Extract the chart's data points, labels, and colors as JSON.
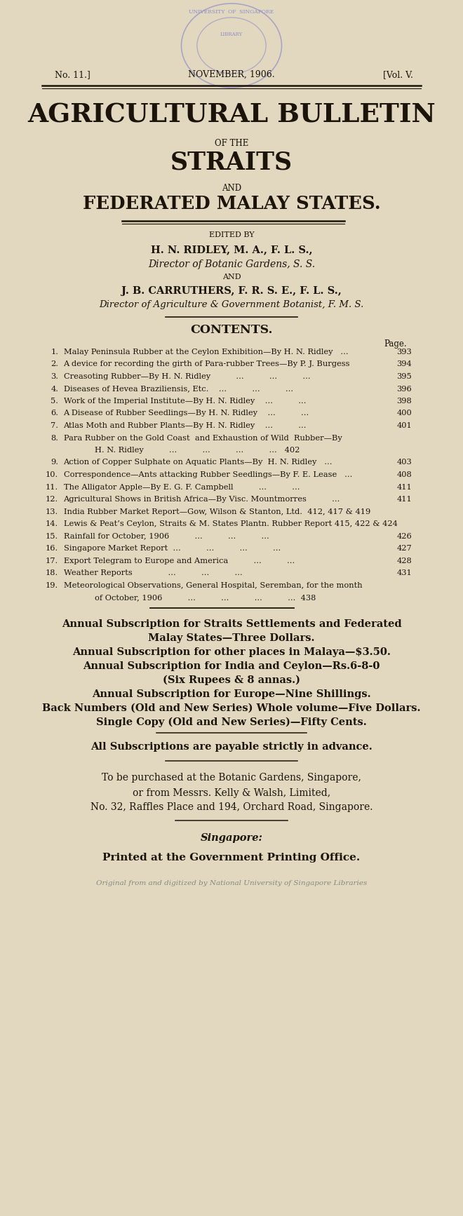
{
  "bg_color": "#e2d8c0",
  "text_color": "#1c130a",
  "stamp_color": "#9090c8",
  "header_left": "No. 11.]",
  "header_center": "NOVEMBER, 1906.",
  "header_right": "[Vol. V.",
  "title_line1": "AGRICULTURAL BULLETIN",
  "title_line2": "OF THE",
  "title_line3": "STRAITS",
  "title_line4": "AND",
  "title_line5": "FEDERATED MALAY STATES.",
  "edited_by": "EDITED BY",
  "editor1_name": "H. N. RIDLEY, M. A., F. L. S.,",
  "editor1_title": "Director of Botanic Gardens, S. S.",
  "and_text": "AND",
  "editor2_name": "J. B. CARRUTHERS, F. R. S. E., F. L. S.,",
  "editor2_title": "Director of Agriculture & Government Botanist, F. M. S.",
  "contents_title": "CONTENTS.",
  "page_label": "Page.",
  "contents": [
    {
      "num": "1.",
      "text1": "Malay Peninsula Rubber at the Ceylon Exhibition—By H. N. Ridley   ...",
      "page": "393",
      "text2": null
    },
    {
      "num": "2.",
      "text1": "A device for recording the girth of Para-rubber Trees—By P. J. Burgess",
      "page": "394",
      "text2": null
    },
    {
      "num": "3.",
      "text1": "Creasoting Rubber—By H. N. Ridley          ...          ...          ...  ",
      "page": "395",
      "text2": null
    },
    {
      "num": "4.",
      "text1": "Diseases of Hevea Braziliensis, Etc.    ...          ...          ...  ",
      "page": "396",
      "text2": null
    },
    {
      "num": "5.",
      "text1": "Work of the Imperial Institute—By H. N. Ridley    ...          ...  ",
      "page": "398",
      "text2": null
    },
    {
      "num": "6.",
      "text1": "A Disease of Rubber Seedlings—By H. N. Ridley    ...          ...  ",
      "page": "400",
      "text2": null
    },
    {
      "num": "7.",
      "text1": "Atlas Moth and Rubber Plants—By H. N. Ridley    ...          ...  ",
      "page": "401",
      "text2": null
    },
    {
      "num": "8.",
      "text1": "Para Rubber on the Gold Coast  and Exhaustion of Wild  Rubber—By",
      "page": null,
      "text2": "H. N. Ridley          ...          ...          ...          ...   402"
    },
    {
      "num": "9.",
      "text1": "Action of Copper Sulphate on Aquatic Plants—By  H. N. Ridley   ...",
      "page": "403",
      "text2": null
    },
    {
      "num": "10.",
      "text1": "Correspondence—Ants attacking Rubber Seedlings—By F. E. Lease   ...",
      "page": "408",
      "text2": null
    },
    {
      "num": "11.",
      "text1": "The Alligator Apple—By E. G. F. Campbell          ...          ...",
      "page": "411",
      "text2": null
    },
    {
      "num": "12.",
      "text1": "Agricultural Shows in British Africa—By Visc. Mountmorres          ...",
      "page": "411",
      "text2": null
    },
    {
      "num": "13.",
      "text1": "India Rubber Market Report—Gow, Wilson & Stanton, Ltd.  412, 417 & 419",
      "page": null,
      "text2": null
    },
    {
      "num": "14.",
      "text1": "Lewis & Peat’s Ceylon, Straits & M. States Plantn. Rubber Report 415, 422 & 424",
      "page": null,
      "text2": null
    },
    {
      "num": "15.",
      "text1": "Rainfall for October, 1906          ...          ...          ...  ",
      "page": "426",
      "text2": null
    },
    {
      "num": "16.",
      "text1": "Singapore Market Report  ...          ...          ...          ...  ",
      "page": "427",
      "text2": null
    },
    {
      "num": "17.",
      "text1": "Export Telegram to Europe and America          ...          ...  ",
      "page": "428",
      "text2": null
    },
    {
      "num": "18.",
      "text1": "Weather Reports              ...          ...          ...       ",
      "page": "431",
      "text2": null
    },
    {
      "num": "19.",
      "text1": "Meteorological Observations, General Hospital, Seremban, for the month",
      "page": null,
      "text2": "of October, 1906          ...          ...          ...          ...  438"
    }
  ],
  "subscription_lines": [
    "Annual Subscription for Straits Settlements and Federated",
    "Malay States—Three Dollars.",
    "Annual Subscription for other places in Malaya—$3.50.",
    "Annual Subscription for India and Ceylon—Rs.6-8-0",
    "(Six Rupees & 8 annas.)",
    "Annual Subscription for Europe—Nine Shillings.",
    "Back Numbers (Old and New Series) Whole volume—Five Dollars.",
    "Single Copy (Old and New Series)—Fifty Cents."
  ],
  "advance_text": "All Subscriptions are payable strictly in advance.",
  "purchase_lines": [
    "To be purchased at the Botanic Gardens, Singapore,",
    "or from Messrs. Kelly & Walsh, Limited,",
    "No. 32, Raffles Place and 194, Orchard Road, Singapore."
  ],
  "singapore_label": "Singapore:",
  "printer_line": "Printed at the Government Printing Office.",
  "digitized_line": "Original from and digitized by National University of Singapore Libraries"
}
